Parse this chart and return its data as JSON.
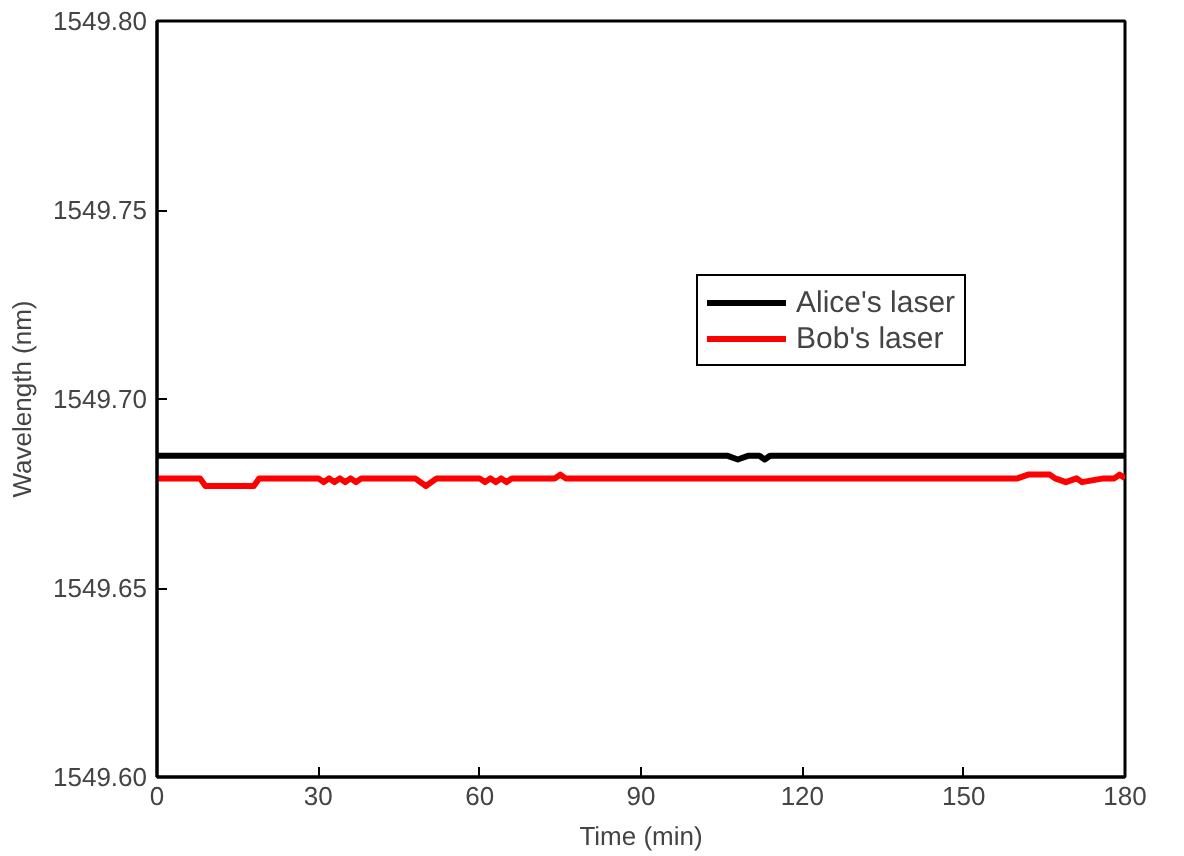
{
  "chart_data": {
    "type": "line",
    "xlabel": "Time (min)",
    "ylabel": "Wavelength (nm)",
    "xlim": [
      0,
      180
    ],
    "ylim": [
      1549.6,
      1549.8
    ],
    "xticks": [
      0,
      30,
      60,
      90,
      120,
      150,
      180
    ],
    "yticks": [
      {
        "value": 1549.6,
        "label": "1549.60"
      },
      1549.65,
      {
        "value": 1549.7,
        "label": "1549.70"
      },
      1549.75,
      {
        "value": 1549.8,
        "label": "1549.80"
      }
    ],
    "legend": "top right",
    "grid": false,
    "marker": "none",
    "line_style": "solid",
    "series": [
      {
        "name": "Alice's laser",
        "color": "#000000",
        "x": [
          0,
          106,
          108,
          110,
          112,
          113,
          114,
          180
        ],
        "values": [
          1549.685,
          1549.685,
          1549.684,
          1549.685,
          1549.685,
          1549.684,
          1549.685,
          1549.685
        ]
      },
      {
        "name": "Bob's laser",
        "color": "#ff0000",
        "x": [
          0,
          8,
          9,
          18,
          19,
          30,
          31,
          32,
          33,
          34,
          35,
          36,
          37,
          38,
          48,
          50,
          52,
          60,
          61,
          62,
          63,
          64,
          65,
          66,
          74,
          75,
          76,
          160,
          162,
          166,
          167,
          169,
          171,
          172,
          176,
          178,
          179,
          180
        ],
        "values": [
          1549.679,
          1549.679,
          1549.677,
          1549.677,
          1549.679,
          1549.679,
          1549.678,
          1549.679,
          1549.678,
          1549.679,
          1549.678,
          1549.679,
          1549.678,
          1549.679,
          1549.679,
          1549.677,
          1549.679,
          1549.679,
          1549.678,
          1549.679,
          1549.678,
          1549.679,
          1549.678,
          1549.679,
          1549.679,
          1549.68,
          1549.679,
          1549.679,
          1549.68,
          1549.68,
          1549.679,
          1549.678,
          1549.679,
          1549.678,
          1549.679,
          1549.679,
          1549.68,
          1549.679
        ]
      }
    ]
  }
}
